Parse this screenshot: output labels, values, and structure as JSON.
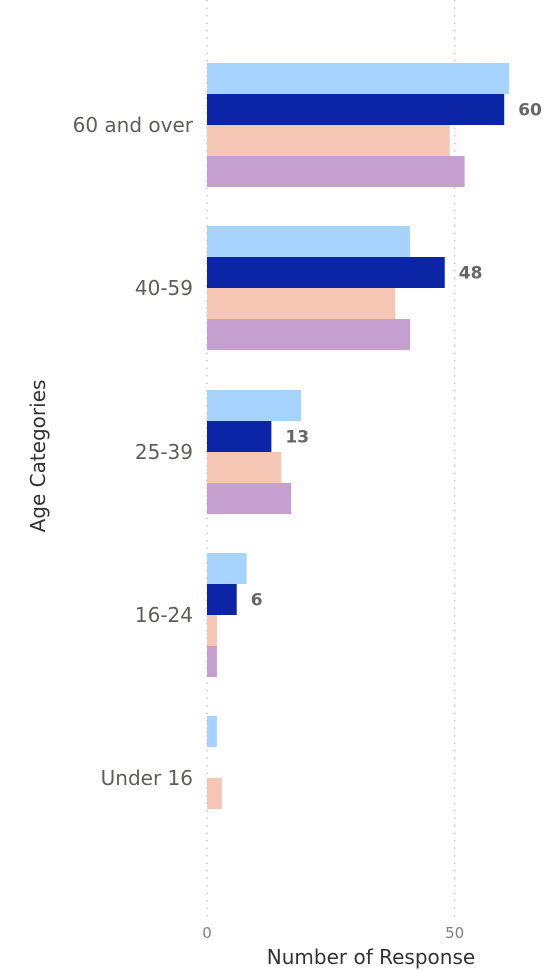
{
  "chart_data": {
    "type": "bar",
    "orientation": "horizontal",
    "ylabel": "Age Categories",
    "xlabel": "Number of Response",
    "categories": [
      "60 and over",
      "40-59",
      "25-39",
      "16-24",
      "Under 16"
    ],
    "xlim": [
      0,
      64
    ],
    "xticks": [
      0,
      50
    ],
    "grid": true,
    "legend": "none",
    "series": [
      {
        "color": "#a7d3ff",
        "values": [
          61,
          41,
          19,
          8,
          2
        ]
      },
      {
        "color": "#0c24a6",
        "values": [
          60,
          48,
          13,
          6,
          0
        ],
        "show_labels": true
      },
      {
        "color": "#f5c6b4",
        "values": [
          49,
          38,
          15,
          2,
          3
        ]
      },
      {
        "color": "#c49fcf",
        "values": [
          52,
          41,
          17,
          2,
          0
        ]
      }
    ]
  }
}
